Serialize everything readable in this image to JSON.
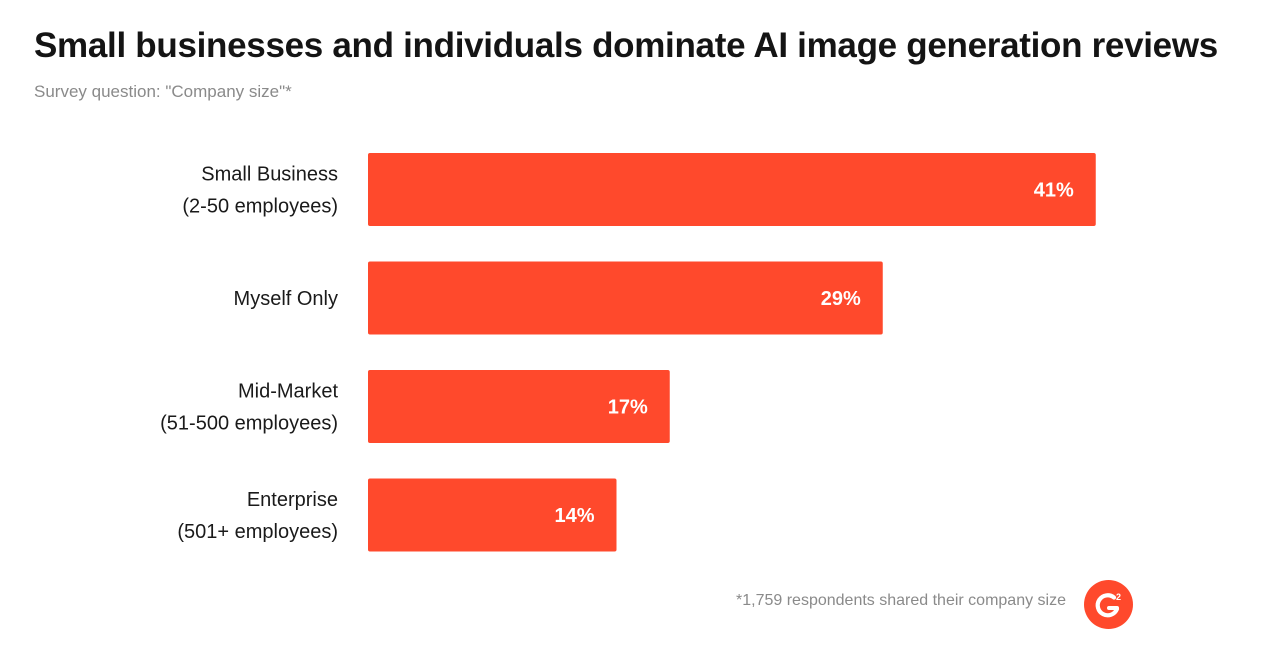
{
  "header": {
    "title": "Small businesses and individuals dominate AI image generation reviews",
    "subtitle": "Survey question: \"Company size\"*"
  },
  "footer": {
    "note": "*1,759 respondents shared their company size",
    "logo_icon": "g2-logo-icon"
  },
  "colors": {
    "bar": "#ff492c",
    "text": "#1a1a1a",
    "muted": "#8a8a8a"
  },
  "chart_data": {
    "type": "bar",
    "orientation": "horizontal",
    "categories": [
      [
        "Small Business",
        "(2-50 employees)"
      ],
      [
        "Myself Only"
      ],
      [
        "Mid-Market",
        "(51-500 employees)"
      ],
      [
        "Enterprise",
        "(501+ employees)"
      ]
    ],
    "values": [
      41,
      29,
      17,
      14
    ],
    "value_labels": [
      "41%",
      "29%",
      "17%",
      "14%"
    ],
    "title": "Small businesses and individuals dominate AI image generation reviews",
    "xlabel": "",
    "ylabel": "",
    "xlim": [
      0,
      100
    ],
    "grid": false
  }
}
